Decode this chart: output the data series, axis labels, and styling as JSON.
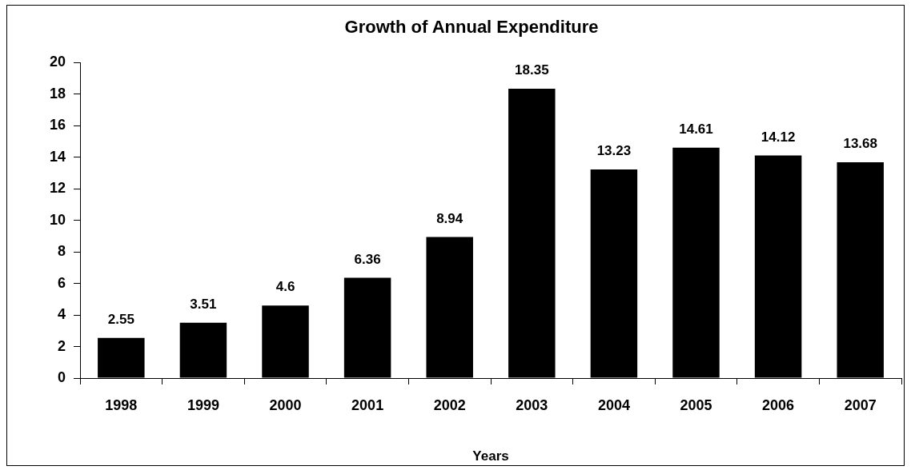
{
  "chart_data": {
    "type": "bar",
    "title": "Growth of Annual Expenditure",
    "xlabel": "Years",
    "categories": [
      "1998",
      "1999",
      "2000",
      "2001",
      "2002",
      "2003",
      "2004",
      "2005",
      "2006",
      "2007"
    ],
    "values": [
      2.55,
      3.51,
      4.6,
      6.36,
      8.94,
      18.35,
      13.23,
      14.61,
      14.12,
      13.68
    ],
    "color": "#000000",
    "ylim": [
      0,
      20
    ],
    "yticks": [
      0,
      2,
      4,
      6,
      8,
      10,
      12,
      14,
      16,
      18,
      20
    ],
    "data_labels": true
  }
}
